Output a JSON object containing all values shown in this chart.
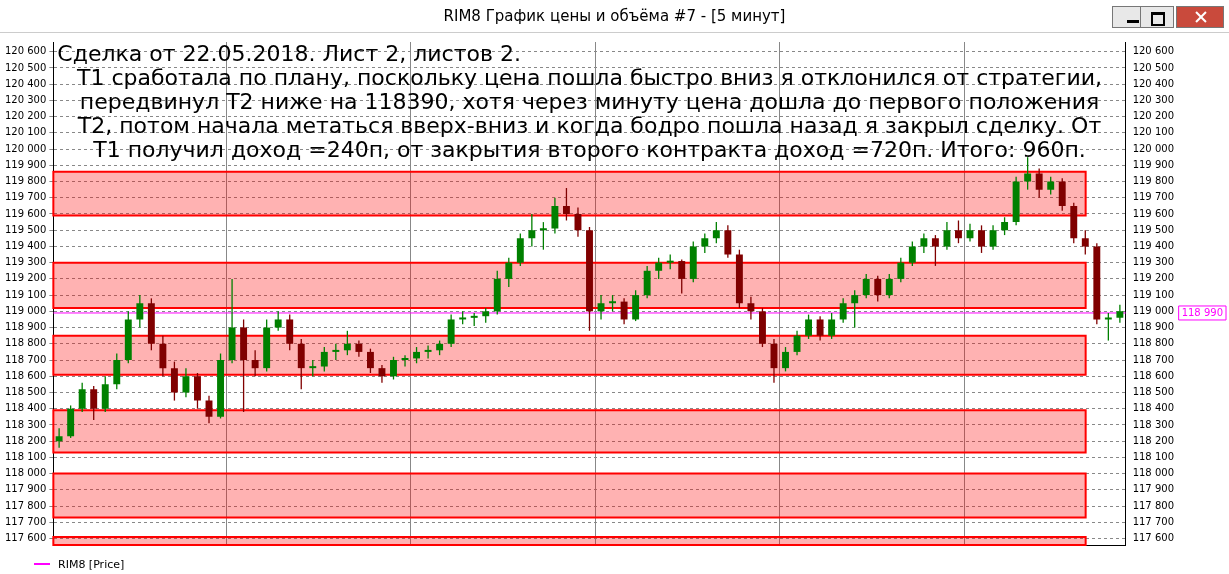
{
  "chart_data": {
    "type": "candlestick",
    "title": "RIM8 График цены и объёма #7 - [5 минут]",
    "annotations": [
      "Сделка от 22.05.2018. Лист 2, листов 2.",
      "Т1 сработала по плану, поскольку цена пошла быстро вниз я отклонился от стратегии, передвинул Т2 ниже на 118390, хотя через минуту цена дошла до первого положения Т2, потом начала метаться вверх-вниз и когда бодро пошла назад я закрыл сделку. От Т1 получил доход =240п, от закрытия второго контракта доход =720п. Итого: 960п."
    ],
    "categories": [
      null,
      null,
      null,
      null,
      null,
      null,
      null,
      null,
      null,
      null,
      null,
      null,
      null,
      null,
      null,
      null,
      null,
      null,
      null,
      null,
      null,
      null,
      null,
      null,
      null,
      null,
      null,
      null,
      null,
      null,
      null,
      null,
      null,
      null,
      null,
      null,
      null,
      null,
      null,
      null,
      null,
      null,
      null,
      null,
      null,
      null,
      null,
      null,
      null,
      null,
      null,
      null,
      null,
      null,
      null,
      null,
      null,
      null,
      null,
      null,
      null,
      null,
      null,
      null,
      null,
      null,
      null,
      null,
      null,
      null,
      null,
      null,
      null,
      null,
      null,
      null,
      null,
      null,
      null,
      null,
      null,
      null,
      null,
      null,
      null,
      null,
      null,
      null,
      null,
      null,
      null,
      null,
      null
    ],
    "legend_title": "RIM8 [Price]",
    "series": [
      {
        "colors": [
          "#008000",
          "#008000",
          "#008000",
          "#800000",
          "#008000",
          "#008000",
          "#008000",
          "#008000",
          "#800000",
          "#800000",
          "#800000",
          "#008000",
          "#800000",
          "#800000",
          "#008000",
          "#008000",
          "#800000",
          "#800000",
          "#008000",
          "#008000",
          "#800000",
          "#800000",
          "#008000",
          "#008000",
          "#008000",
          "#008000",
          "#800000",
          "#800000",
          "#800000",
          "#008000",
          "#008000",
          "#008000",
          "#008000",
          "#008000",
          "#008000",
          "#008000",
          "#008000",
          "#008000",
          "#008000",
          "#008000",
          "#008000",
          "#008000",
          "#008000",
          "#008000",
          "#800000",
          "#800000",
          "#800000",
          "#008000",
          "#008000",
          "#800000",
          "#008000",
          "#008000",
          "#008000",
          "#008000",
          "#800000",
          "#008000",
          "#008000",
          "#008000",
          "#800000",
          "#800000",
          "#800000",
          "#800000",
          "#800000",
          "#008000",
          "#008000",
          "#008000",
          "#800000",
          "#008000",
          "#008000",
          "#008000",
          "#008000",
          "#800000",
          "#008000",
          "#008000",
          "#008000",
          "#008000",
          "#800000",
          "#008000",
          "#800000",
          "#008000",
          "#800000",
          "#008000",
          "#008000",
          "#008000",
          "#008000",
          "#800000",
          "#008000",
          "#800000",
          "#800000",
          "#800000",
          "#800000",
          "#008000",
          "#008000"
        ],
        "ohlc": [
          [
            118200,
            118280,
            118160,
            118230
          ],
          [
            118230,
            118420,
            118220,
            118400
          ],
          [
            118400,
            118560,
            118380,
            118520
          ],
          [
            118520,
            118540,
            118330,
            118400
          ],
          [
            118400,
            118600,
            118380,
            118550
          ],
          [
            118550,
            118740,
            118520,
            118700
          ],
          [
            118700,
            119000,
            118680,
            118950
          ],
          [
            118950,
            119100,
            118900,
            119050
          ],
          [
            119050,
            119080,
            118760,
            118800
          ],
          [
            118800,
            118850,
            118600,
            118650
          ],
          [
            118650,
            118690,
            118450,
            118500
          ],
          [
            118500,
            118650,
            118470,
            118600
          ],
          [
            118600,
            118620,
            118400,
            118450
          ],
          [
            118450,
            118480,
            118310,
            118350
          ],
          [
            118350,
            118740,
            118340,
            118700
          ],
          [
            118700,
            119200,
            118680,
            118900
          ],
          [
            118900,
            118950,
            118380,
            118700
          ],
          [
            118700,
            118760,
            118600,
            118650
          ],
          [
            118650,
            118950,
            118630,
            118900
          ],
          [
            118900,
            119000,
            118880,
            118950
          ],
          [
            118950,
            118980,
            118760,
            118800
          ],
          [
            118800,
            118830,
            118520,
            118650
          ],
          [
            118650,
            118700,
            118600,
            118660
          ],
          [
            118660,
            118780,
            118630,
            118750
          ],
          [
            118750,
            118800,
            118700,
            118760
          ],
          [
            118760,
            118880,
            118730,
            118800
          ],
          [
            118800,
            118820,
            118720,
            118750
          ],
          [
            118750,
            118770,
            118620,
            118650
          ],
          [
            118650,
            118670,
            118560,
            118600
          ],
          [
            118600,
            118720,
            118580,
            118700
          ],
          [
            118700,
            118730,
            118660,
            118710
          ],
          [
            118710,
            118780,
            118680,
            118750
          ],
          [
            118750,
            118790,
            118710,
            118760
          ],
          [
            118760,
            118820,
            118730,
            118800
          ],
          [
            118800,
            118980,
            118780,
            118950
          ],
          [
            118950,
            119000,
            118920,
            118960
          ],
          [
            118960,
            118990,
            118910,
            118970
          ],
          [
            118970,
            119020,
            118930,
            119000
          ],
          [
            119000,
            119250,
            118980,
            119200
          ],
          [
            119200,
            119330,
            119150,
            119300
          ],
          [
            119300,
            119480,
            119280,
            119450
          ],
          [
            119450,
            119600,
            119400,
            119500
          ],
          [
            119500,
            119550,
            119380,
            119510
          ],
          [
            119510,
            119700,
            119480,
            119650
          ],
          [
            119650,
            119760,
            119560,
            119600
          ],
          [
            119600,
            119640,
            119460,
            119500
          ],
          [
            119500,
            119520,
            118880,
            119000
          ],
          [
            119000,
            119100,
            118950,
            119050
          ],
          [
            119050,
            119100,
            119000,
            119060
          ],
          [
            119060,
            119080,
            118920,
            118950
          ],
          [
            118950,
            119130,
            118940,
            119100
          ],
          [
            119100,
            119280,
            119080,
            119250
          ],
          [
            119250,
            119330,
            119200,
            119300
          ],
          [
            119300,
            119350,
            119260,
            119310
          ],
          [
            119310,
            119320,
            119110,
            119200
          ],
          [
            119200,
            119430,
            119180,
            119400
          ],
          [
            119400,
            119480,
            119360,
            119450
          ],
          [
            119450,
            119550,
            119420,
            119500
          ],
          [
            119500,
            119530,
            119330,
            119350
          ],
          [
            119350,
            119380,
            119020,
            119050
          ],
          [
            119050,
            119090,
            118950,
            119000
          ],
          [
            119000,
            119020,
            118780,
            118800
          ],
          [
            118800,
            118830,
            118560,
            118650
          ],
          [
            118650,
            118780,
            118630,
            118750
          ],
          [
            118750,
            118880,
            118730,
            118850
          ],
          [
            118850,
            118980,
            118830,
            118950
          ],
          [
            118950,
            118970,
            118820,
            118850
          ],
          [
            118850,
            118990,
            118830,
            118950
          ],
          [
            118950,
            119080,
            118930,
            119050
          ],
          [
            119050,
            119130,
            118900,
            119100
          ],
          [
            119100,
            119230,
            119080,
            119200
          ],
          [
            119200,
            119220,
            119060,
            119100
          ],
          [
            119100,
            119230,
            119080,
            119200
          ],
          [
            119200,
            119330,
            119180,
            119300
          ],
          [
            119300,
            119430,
            119280,
            119400
          ],
          [
            119400,
            119480,
            119360,
            119450
          ],
          [
            119450,
            119470,
            119280,
            119400
          ],
          [
            119400,
            119550,
            119380,
            119500
          ],
          [
            119500,
            119560,
            119420,
            119450
          ],
          [
            119450,
            119540,
            119430,
            119500
          ],
          [
            119500,
            119530,
            119360,
            119400
          ],
          [
            119400,
            119530,
            119380,
            119500
          ],
          [
            119500,
            119580,
            119470,
            119550
          ],
          [
            119550,
            119830,
            119530,
            119800
          ],
          [
            119800,
            119950,
            119750,
            119850
          ],
          [
            119850,
            119880,
            119700,
            119750
          ],
          [
            119750,
            119830,
            119720,
            119800
          ],
          [
            119800,
            119820,
            119620,
            119650
          ],
          [
            119650,
            119670,
            119420,
            119450
          ],
          [
            119450,
            119500,
            119350,
            119400
          ],
          [
            119400,
            119420,
            118920,
            118950
          ],
          [
            118950,
            118990,
            118820,
            118960
          ],
          [
            118960,
            119040,
            118930,
            119000
          ]
        ]
      }
    ],
    "ylim": [
      117560,
      120660
    ],
    "yticks": [
      {
        "value": 117600,
        "label": "117 600"
      },
      {
        "value": 117700,
        "label": "117 700"
      },
      {
        "value": 117800,
        "label": "117 800"
      },
      {
        "value": 117900,
        "label": "117 900"
      },
      {
        "value": 118000,
        "label": "118 000"
      },
      {
        "value": 118100,
        "label": "118 100"
      },
      {
        "value": 118200,
        "label": "118 200"
      },
      {
        "value": 118300,
        "label": "118 300"
      },
      {
        "value": 118400,
        "label": "118 400"
      },
      {
        "value": 118500,
        "label": "118 500"
      },
      {
        "value": 118600,
        "label": "118 600"
      },
      {
        "value": 118700,
        "label": "118 700"
      },
      {
        "value": 118800,
        "label": "118 800"
      },
      {
        "value": 118900,
        "label": "118 900"
      },
      {
        "value": 119000,
        "label": "119 000"
      },
      {
        "value": 119100,
        "label": "119 100"
      },
      {
        "value": 119200,
        "label": "119 200"
      },
      {
        "value": 119300,
        "label": "119 300"
      },
      {
        "value": 119400,
        "label": "119 400"
      },
      {
        "value": 119500,
        "label": "119 500"
      },
      {
        "value": 119600,
        "label": "119 600"
      },
      {
        "value": 119700,
        "label": "119 700"
      },
      {
        "value": 119800,
        "label": "119 800"
      },
      {
        "value": 119900,
        "label": "119 900"
      },
      {
        "value": 120000,
        "label": "120 000"
      },
      {
        "value": 120100,
        "label": "120 100"
      },
      {
        "value": 120200,
        "label": "120 200"
      },
      {
        "value": 120300,
        "label": "120 300"
      },
      {
        "value": 120400,
        "label": "120 400"
      },
      {
        "value": 120500,
        "label": "120 500"
      },
      {
        "value": 120600,
        "label": "120 600"
      }
    ],
    "y2lim": [
      117560,
      120660
    ],
    "y2ticks": [
      {
        "value": 117600,
        "label": "117 600"
      },
      {
        "value": 117700,
        "label": "117 700"
      },
      {
        "value": 117800,
        "label": "117 800"
      },
      {
        "value": 117900,
        "label": "117 900"
      },
      {
        "value": 118000,
        "label": "118 000"
      },
      {
        "value": 118100,
        "label": "118 100"
      },
      {
        "value": 118200,
        "label": "118 200"
      },
      {
        "value": 118300,
        "label": "118 300"
      },
      {
        "value": 118400,
        "label": "118 400"
      },
      {
        "value": 118500,
        "label": "118 500"
      },
      {
        "value": 118600,
        "label": "118 600"
      },
      {
        "value": 118700,
        "label": "118 700"
      },
      {
        "value": 118800,
        "label": "118 800"
      },
      {
        "value": 118900,
        "label": "118 900"
      },
      {
        "value": 119000,
        "label": "119 000"
      },
      {
        "value": 119100,
        "label": "119 100"
      },
      {
        "value": 119200,
        "label": "119 200"
      },
      {
        "value": 119300,
        "label": "119 300"
      },
      {
        "value": 119400,
        "label": "119 400"
      },
      {
        "value": 119500,
        "label": "119 500"
      },
      {
        "value": 119600,
        "label": "119 600"
      },
      {
        "value": 119700,
        "label": "119 700"
      },
      {
        "value": 119800,
        "label": "119 800"
      },
      {
        "value": 119900,
        "label": "119 900"
      },
      {
        "value": 120000,
        "label": "120 000"
      },
      {
        "value": 120100,
        "label": "120 100"
      },
      {
        "value": 120200,
        "label": "120 200"
      },
      {
        "value": 120300,
        "label": "120 300"
      },
      {
        "value": 120400,
        "label": "120 400"
      },
      {
        "value": 120500,
        "label": "120 500"
      },
      {
        "value": 120600,
        "label": "120 600"
      }
    ],
    "bands": [
      {
        "axis": "y",
        "from": 119590,
        "to": 119860,
        "color": "#ff0000"
      },
      {
        "axis": "y",
        "from": 119020,
        "to": 119300,
        "color": "#ff0000"
      },
      {
        "axis": "y",
        "from": 118610,
        "to": 118850,
        "color": "#ff0000"
      },
      {
        "axis": "y",
        "from": 118130,
        "to": 118390,
        "color": "#ff0000"
      },
      {
        "axis": "y",
        "from": 117730,
        "to": 118000,
        "color": "#ff0000"
      },
      {
        "axis": "y",
        "from": 117560,
        "to": 117610,
        "color": "#ff0000"
      }
    ],
    "ref_lines": [
      {
        "axis": "y2",
        "value": 118990,
        "label": "118 990",
        "color": "#ff00ff"
      }
    ],
    "grid": true,
    "tick_labels": "y"
  }
}
